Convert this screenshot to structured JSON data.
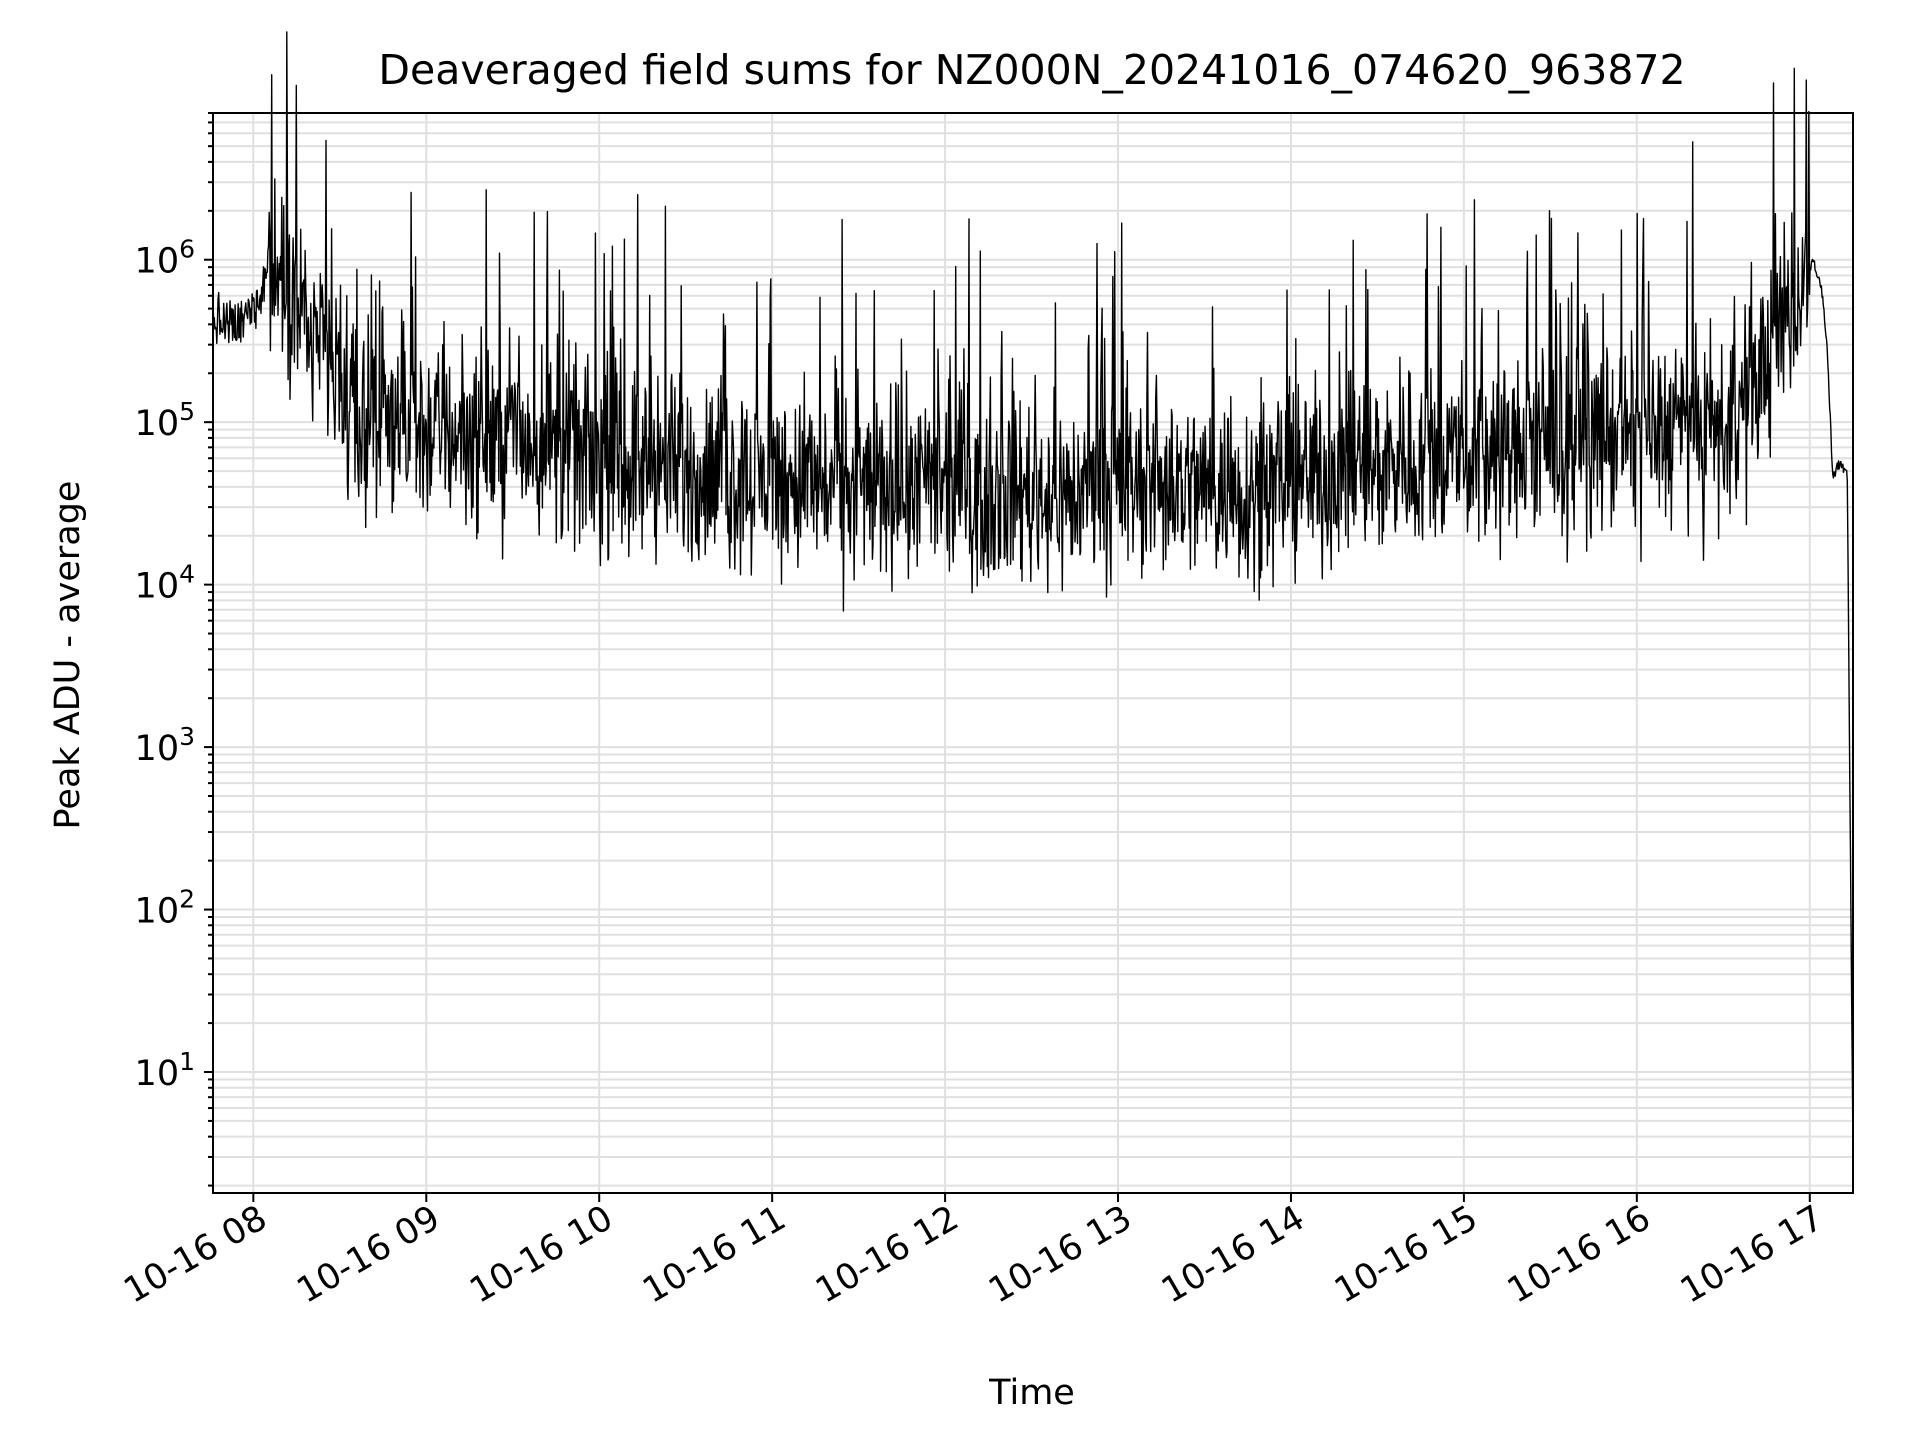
{
  "chart_data": {
    "type": "line",
    "title": "Deaveraged field sums for NZ000N_20241016_074620_963872",
    "xlabel": "Time",
    "ylabel": "Peak ADU - average",
    "x_scale": "time",
    "y_scale": "log",
    "xlim": [
      "2024-10-16 07:46",
      "2024-10-16 17:15"
    ],
    "ylim": [
      1.8,
      8000000
    ],
    "x_ticks": [
      "10-16 08",
      "10-16 09",
      "10-16 10",
      "10-16 11",
      "10-16 12",
      "10-16 13",
      "10-16 14",
      "10-16 15",
      "10-16 16",
      "10-16 17"
    ],
    "y_ticks": [
      {
        "base": "10",
        "exp": "1",
        "value": 10
      },
      {
        "base": "10",
        "exp": "2",
        "value": 100
      },
      {
        "base": "10",
        "exp": "3",
        "value": 1000
      },
      {
        "base": "10",
        "exp": "4",
        "value": 10000
      },
      {
        "base": "10",
        "exp": "5",
        "value": 100000
      },
      {
        "base": "10",
        "exp": "6",
        "value": 1000000
      }
    ],
    "grid": true,
    "line_color": "#000000",
    "grid_color": "#e0e0e0",
    "series": [
      {
        "x": [
          "2024-10-16 07:46",
          "2024-10-16 07:55",
          "2024-10-16 08:02",
          "2024-10-16 08:05",
          "2024-10-16 08:12",
          "2024-10-16 08:20",
          "2024-10-16 08:27",
          "2024-10-16 08:35",
          "2024-10-16 08:45",
          "2024-10-16 09:00",
          "2024-10-16 09:15",
          "2024-10-16 09:30",
          "2024-10-16 09:45",
          "2024-10-16 10:00",
          "2024-10-16 10:15",
          "2024-10-16 10:30",
          "2024-10-16 10:45",
          "2024-10-16 11:00",
          "2024-10-16 11:15",
          "2024-10-16 11:30",
          "2024-10-16 11:45",
          "2024-10-16 12:00",
          "2024-10-16 12:15",
          "2024-10-16 12:30",
          "2024-10-16 12:45",
          "2024-10-16 13:00",
          "2024-10-16 13:15",
          "2024-10-16 13:30",
          "2024-10-16 13:45",
          "2024-10-16 14:00",
          "2024-10-16 14:15",
          "2024-10-16 14:30",
          "2024-10-16 14:45",
          "2024-10-16 15:00",
          "2024-10-16 15:15",
          "2024-10-16 15:30",
          "2024-10-16 15:45",
          "2024-10-16 16:00",
          "2024-10-16 16:15",
          "2024-10-16 16:30",
          "2024-10-16 16:40",
          "2024-10-16 16:50",
          "2024-10-16 16:58",
          "2024-10-16 17:01",
          "2024-10-16 17:04",
          "2024-10-16 17:06",
          "2024-10-16 17:08",
          "2024-10-16 17:10",
          "2024-10-16 17:13",
          "2024-10-16 17:15"
        ],
        "y": [
          420000,
          380000,
          600000,
          900000,
          700000,
          350000,
          200000,
          95000,
          100000,
          90000,
          85000,
          80000,
          70000,
          60000,
          55000,
          50000,
          45000,
          45000,
          42000,
          40000,
          42000,
          38000,
          40000,
          38000,
          35000,
          40000,
          42000,
          40000,
          38000,
          45000,
          50000,
          55000,
          60000,
          60000,
          65000,
          70000,
          80000,
          85000,
          90000,
          80000,
          150000,
          400000,
          700000,
          1000000,
          700000,
          300000,
          45000,
          55000,
          50000,
          3
        ]
      }
    ]
  }
}
